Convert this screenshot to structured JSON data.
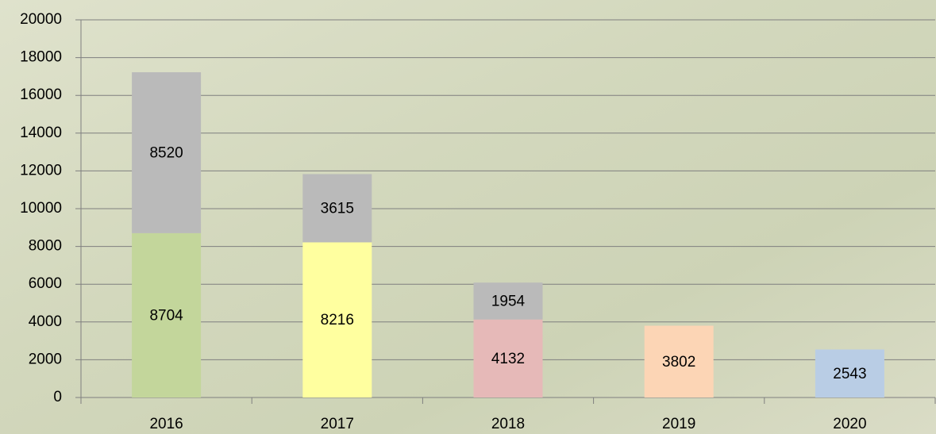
{
  "chart_data": {
    "type": "stacked_bar",
    "categories": [
      "2016",
      "2017",
      "2018",
      "2019",
      "2020"
    ],
    "series": [
      {
        "colors": [
          "#c3d69b",
          "#ffff9f",
          "#e6b9b8",
          "#fcd5b5",
          "#b9cde5"
        ],
        "values": [
          8704,
          8216,
          4132,
          3802,
          2543
        ]
      },
      {
        "color": "#bababa",
        "values": [
          8520,
          3615,
          1954,
          null,
          null
        ]
      }
    ],
    "ylim": [
      0,
      20000
    ],
    "yticks": [
      0,
      2000,
      4000,
      6000,
      8000,
      10000,
      12000,
      14000,
      16000,
      18000,
      20000
    ],
    "grid": true
  }
}
